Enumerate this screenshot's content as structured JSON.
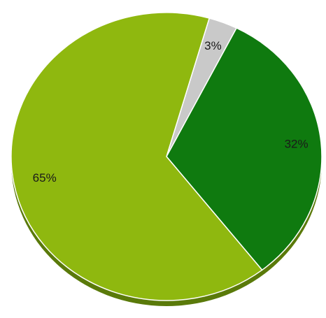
{
  "chart_data": {
    "type": "pie",
    "slices": [
      {
        "label": "3%",
        "value": 3,
        "color": "#c9c9c9"
      },
      {
        "label": "32%",
        "value": 32,
        "color": "#0f7a0f"
      },
      {
        "label": "65%",
        "value": 65,
        "color": "#8fb80f"
      }
    ],
    "start_direction": "top",
    "order": "clockwise",
    "legend": "none",
    "shadow_color": "#5a7a0a"
  }
}
